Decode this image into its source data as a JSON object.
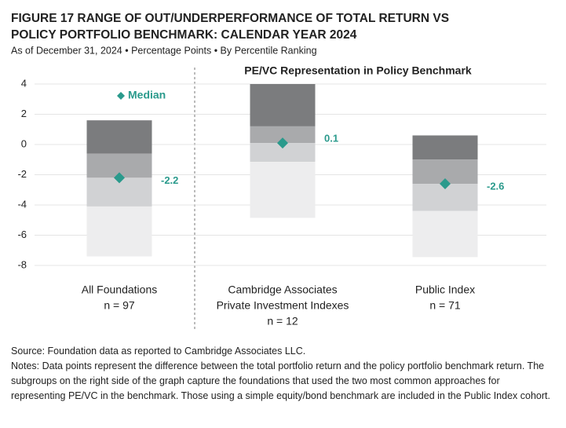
{
  "chart_data": {
    "type": "range_bar",
    "title": [
      "FIGURE 17  RANGE OF OUT/UNDERPERFORMANCE OF TOTAL RETURN VS",
      "POLICY PORTFOLIO BENCHMARK: CALENDAR YEAR 2024"
    ],
    "subtitle": "As of December 31, 2024 • Percentage Points • By Percentile Ranking",
    "annotation": "PE/VC Representation in Policy Benchmark",
    "legend": {
      "label": "Median",
      "color": "#2a9a8c"
    },
    "categories": [
      [
        "All Foundations",
        "n = 97"
      ],
      [
        "Cambridge Associates",
        "Private Investment Indexes",
        "n = 12"
      ],
      [
        "Public Index",
        "n = 71"
      ]
    ],
    "boxes": [
      {
        "max": 1.6,
        "q3": -0.6,
        "median": -2.2,
        "q1": -4.1,
        "min": -7.4
      },
      {
        "max": 4.0,
        "q3": 1.2,
        "median": 0.1,
        "q1": -1.15,
        "min": -4.85
      },
      {
        "max": 0.6,
        "q3": -1.0,
        "median": -2.6,
        "q1": -4.4,
        "min": -7.45
      }
    ],
    "segment_colors": [
      "#7b7c7e",
      "#a9aaac",
      "#d1d2d4",
      "#ededee"
    ],
    "ylim": [
      -8,
      4
    ],
    "yticks": [
      4,
      2,
      0,
      -2,
      -4,
      -6,
      -8
    ],
    "grid": true,
    "source": "Source: Foundation data as reported to Cambridge Associates LLC.",
    "notes": "Notes: Data points represent the difference between the total portfolio return and the policy portfolio benchmark return. The subgroups on the right side of the graph capture the foundations that used the two most common approaches for representing PE/VC in the benchmark. Those using a simple equity/bond benchmark are included in the Public Index cohort."
  }
}
